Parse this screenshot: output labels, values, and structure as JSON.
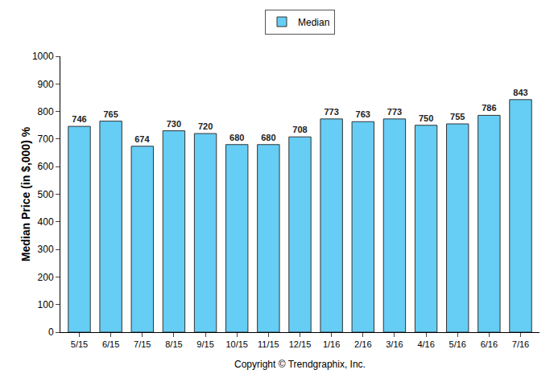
{
  "chart_data": {
    "type": "bar",
    "y_label": "Median Price (in $,000) %",
    "annotations": [
      "Copyright © Trendgraphix, Inc."
    ],
    "categories": [
      "5/15",
      "6/15",
      "7/15",
      "8/15",
      "9/15",
      "10/15",
      "11/15",
      "12/15",
      "1/16",
      "2/16",
      "3/16",
      "4/16",
      "5/16",
      "6/16",
      "7/16"
    ],
    "series": [
      {
        "name": "Median",
        "color": "#66cdf5",
        "values": [
          746,
          765,
          674,
          730,
          720,
          680,
          680,
          708,
          773,
          763,
          773,
          750,
          755,
          786,
          843
        ]
      }
    ],
    "ylim": [
      0,
      1000
    ],
    "yticks": [
      0,
      100,
      200,
      300,
      400,
      500,
      600,
      700,
      800,
      900,
      1000
    ],
    "grid": false,
    "legend": "top",
    "data_labels": true
  }
}
